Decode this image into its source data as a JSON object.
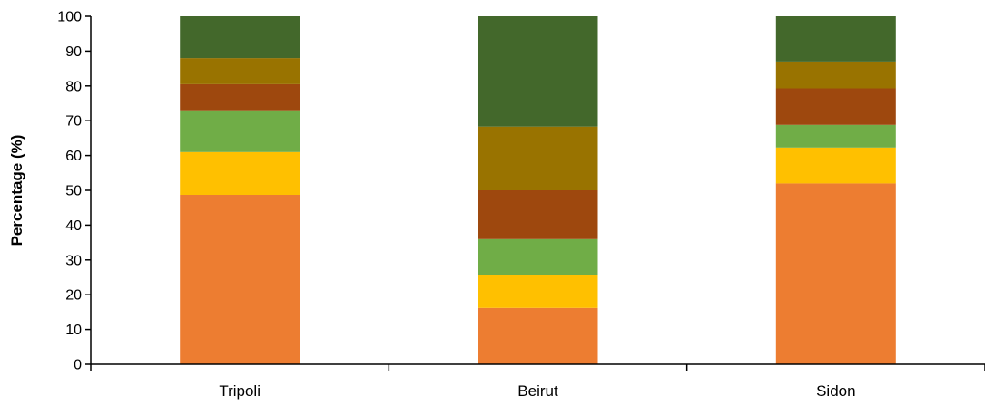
{
  "chart_data": {
    "type": "bar",
    "stacked": true,
    "categories": [
      "Tripoli",
      "Beirut",
      "Sidon"
    ],
    "series": [
      {
        "color": "#ED7D31",
        "values": [
          48.7,
          16.2,
          52.0
        ]
      },
      {
        "color": "#FFC000",
        "values": [
          12.3,
          9.5,
          10.3
        ]
      },
      {
        "color": "#70AD47",
        "values": [
          12.0,
          10.3,
          6.5
        ]
      },
      {
        "color": "#9E480E",
        "values": [
          7.5,
          14.0,
          10.5
        ]
      },
      {
        "color": "#997300",
        "values": [
          7.5,
          18.3,
          7.7
        ]
      },
      {
        "color": "#43682B",
        "values": [
          12.0,
          31.7,
          13.0
        ]
      }
    ],
    "xlabel": "",
    "ylabel": "Percentage (%)",
    "ylim": [
      0,
      100
    ],
    "yticks": [
      0,
      10,
      20,
      30,
      40,
      50,
      60,
      70,
      80,
      90,
      100
    ],
    "grid": false,
    "legend": "none"
  }
}
